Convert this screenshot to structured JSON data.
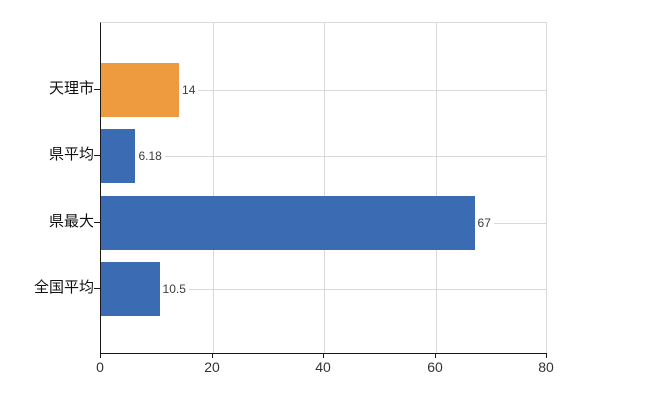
{
  "chart_data": {
    "type": "bar",
    "orientation": "horizontal",
    "title": "",
    "categories": [
      "天理市",
      "県平均",
      "県最大",
      "全国平均"
    ],
    "values": [
      14,
      6.18,
      67,
      10.5
    ],
    "value_labels": [
      "14",
      "6.18",
      "67",
      "10.5"
    ],
    "bar_colors": [
      "#ED9B3E",
      "#3B6CB3",
      "#3B6CB3",
      "#3B6CB3"
    ],
    "xlabel": "",
    "ylabel": "",
    "xlim": [
      0,
      80
    ],
    "x_ticks": [
      "0",
      "20",
      "40",
      "60",
      "80"
    ],
    "grid": true,
    "legend": false
  },
  "colors": {
    "bar_orange": "#ED9B3E",
    "bar_blue": "#3B6CB3",
    "grid": "#d9d9d9",
    "axis": "#1a1a1a",
    "tick_text": "#333333",
    "value_text": "#3c3c3c",
    "category_text": "#111111",
    "background": "#ffffff"
  }
}
